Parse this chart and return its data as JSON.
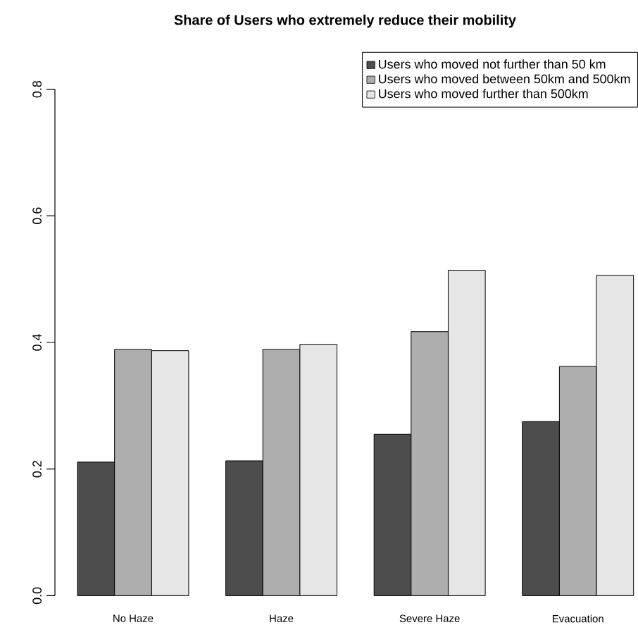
{
  "chart_data": {
    "type": "bar",
    "title": "Share of Users who extremely reduce their mobility",
    "categories": [
      "No Haze",
      "Haze",
      "Severe Haze",
      "Evacuation"
    ],
    "series": [
      {
        "name": "Users who moved not further than 50 km",
        "color": "#4d4d4d",
        "values": [
          0.211,
          0.213,
          0.255,
          0.275
        ]
      },
      {
        "name": "Users who moved between 50km and 500km",
        "color": "#aeaeae",
        "values": [
          0.389,
          0.389,
          0.417,
          0.362
        ]
      },
      {
        "name": "Users who moved further than 500km",
        "color": "#e6e6e6",
        "values": [
          0.387,
          0.397,
          0.514,
          0.506
        ]
      }
    ],
    "ylim": [
      0,
      0.8
    ],
    "yticks": [
      {
        "value": 0,
        "label": "0.0"
      },
      0.2,
      0.4,
      0.6,
      0.8
    ],
    "legend": "top right"
  }
}
